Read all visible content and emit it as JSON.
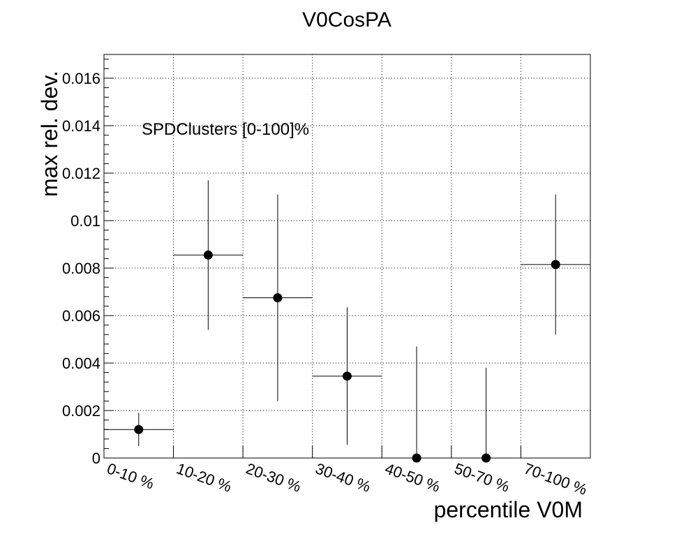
{
  "chart_data": {
    "type": "scatter",
    "title": "V0CosPA",
    "xlabel": "percentile V0M",
    "ylabel": "max rel. dev.",
    "annotation": "SPDClusters [0-100]%",
    "categories": [
      "0-10 %",
      "10-20 %",
      "20-30 %",
      "30-40 %",
      "40-50 %",
      "50-70 %",
      "70-100 %"
    ],
    "values": [
      0.0012,
      0.00855,
      0.00675,
      0.00345,
      0.0,
      0.0,
      0.00815
    ],
    "errors": [
      0.0007,
      0.00315,
      0.00435,
      0.0029,
      0.0047,
      0.0038,
      0.00295
    ],
    "ylim": [
      0,
      0.017
    ],
    "y_major_ticks": [
      0,
      0.002,
      0.004,
      0.006,
      0.008,
      0.01,
      0.012,
      0.014,
      0.016
    ],
    "y_tick_labels": [
      "0",
      "0.002",
      "0.004",
      "0.006",
      "0.008",
      "0.01",
      "0.012",
      "0.014",
      "0.016"
    ],
    "grid": true,
    "legend": "none",
    "marker_color": "#000000"
  }
}
